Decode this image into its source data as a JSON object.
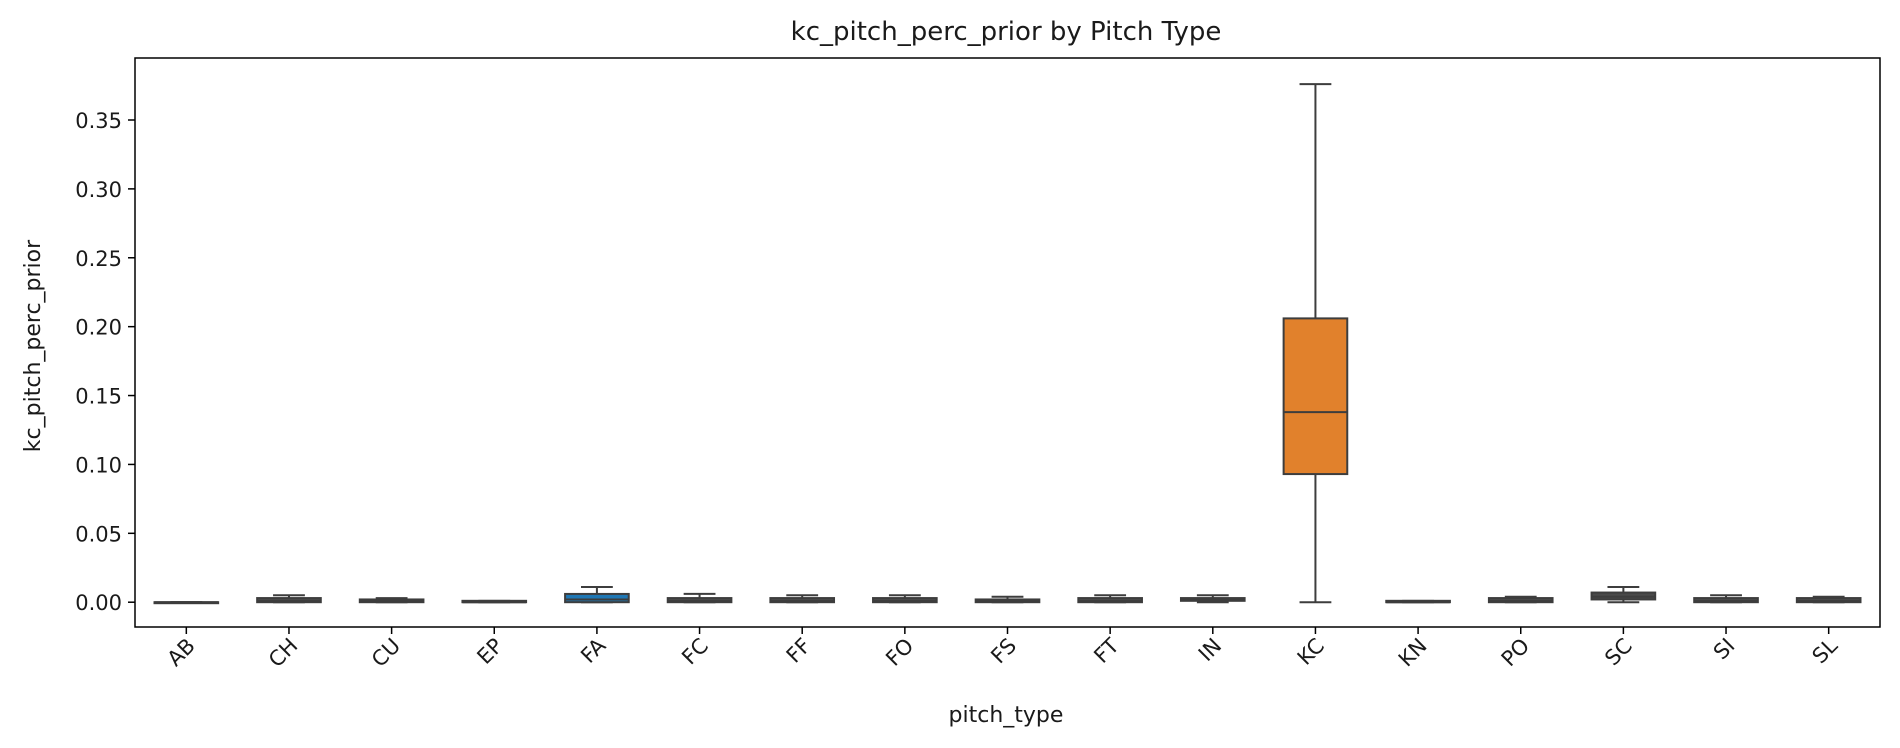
{
  "chart_data": {
    "type": "box",
    "title": "kc_pitch_perc_prior by Pitch Type",
    "xlabel": "pitch_type",
    "ylabel": "kc_pitch_perc_prior",
    "ylim": [
      -0.018,
      0.395
    ],
    "yticks": [
      0.0,
      0.05,
      0.1,
      0.15,
      0.2,
      0.25,
      0.3,
      0.35
    ],
    "ytick_labels": [
      "0.00",
      "0.05",
      "0.10",
      "0.15",
      "0.20",
      "0.25",
      "0.30",
      "0.35"
    ],
    "categories": [
      "AB",
      "CH",
      "CU",
      "EP",
      "FA",
      "FC",
      "FF",
      "FO",
      "FS",
      "FT",
      "IN",
      "KC",
      "KN",
      "PO",
      "SC",
      "SI",
      "SL"
    ],
    "boxes": [
      {
        "whisker_low": 0.0,
        "q1": 0.0,
        "median": 0.0,
        "q3": 0.0,
        "whisker_high": 0.0
      },
      {
        "whisker_low": 0.0,
        "q1": 0.0,
        "median": 0.001,
        "q3": 0.003,
        "whisker_high": 0.005
      },
      {
        "whisker_low": 0.0,
        "q1": 0.0,
        "median": 0.001,
        "q3": 0.002,
        "whisker_high": 0.003
      },
      {
        "whisker_low": 0.0,
        "q1": 0.0,
        "median": 0.0,
        "q3": 0.001,
        "whisker_high": 0.001
      },
      {
        "whisker_low": 0.0,
        "q1": 0.0,
        "median": 0.002,
        "q3": 0.006,
        "whisker_high": 0.011
      },
      {
        "whisker_low": 0.0,
        "q1": 0.0,
        "median": 0.001,
        "q3": 0.003,
        "whisker_high": 0.006
      },
      {
        "whisker_low": 0.0,
        "q1": 0.0,
        "median": 0.001,
        "q3": 0.003,
        "whisker_high": 0.005
      },
      {
        "whisker_low": 0.0,
        "q1": 0.0,
        "median": 0.001,
        "q3": 0.003,
        "whisker_high": 0.005
      },
      {
        "whisker_low": 0.0,
        "q1": 0.0,
        "median": 0.001,
        "q3": 0.002,
        "whisker_high": 0.004
      },
      {
        "whisker_low": 0.0,
        "q1": 0.0,
        "median": 0.001,
        "q3": 0.003,
        "whisker_high": 0.005
      },
      {
        "whisker_low": 0.0,
        "q1": 0.001,
        "median": 0.002,
        "q3": 0.003,
        "whisker_high": 0.005
      },
      {
        "whisker_low": 0.0,
        "q1": 0.093,
        "median": 0.138,
        "q3": 0.206,
        "whisker_high": 0.376
      },
      {
        "whisker_low": 0.0,
        "q1": 0.0,
        "median": 0.0,
        "q3": 0.001,
        "whisker_high": 0.001
      },
      {
        "whisker_low": 0.0,
        "q1": 0.0,
        "median": 0.001,
        "q3": 0.003,
        "whisker_high": 0.004
      },
      {
        "whisker_low": 0.0,
        "q1": 0.002,
        "median": 0.004,
        "q3": 0.007,
        "whisker_high": 0.011
      },
      {
        "whisker_low": 0.0,
        "q1": 0.0,
        "median": 0.001,
        "q3": 0.003,
        "whisker_high": 0.005
      },
      {
        "whisker_low": 0.0,
        "q1": 0.0,
        "median": 0.001,
        "q3": 0.003,
        "whisker_high": 0.004
      }
    ],
    "box_colors": {
      "FA": "#1f77b4",
      "KC": "#e1812c",
      "default": "#4a4a4a"
    },
    "line_color": "#3d3d3d",
    "grid": false,
    "legend": "none"
  }
}
